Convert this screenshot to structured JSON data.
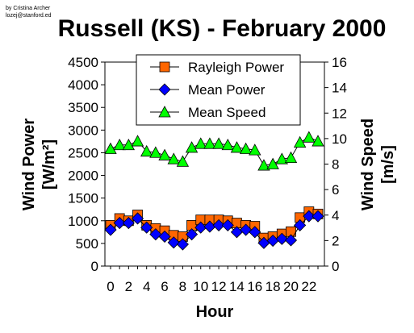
{
  "credit": [
    "by Cristina Archer",
    "lozej@stanford.ed"
  ],
  "chart_data": {
    "type": "line",
    "title": "Russell (KS) - February 2000",
    "xlabel": "Hour",
    "ylabel_left": "Wind Power [W/m²]",
    "ylabel_right": "Wind Speed [m/s]",
    "x": [
      0,
      1,
      2,
      3,
      4,
      5,
      6,
      7,
      8,
      9,
      10,
      11,
      12,
      13,
      14,
      15,
      16,
      17,
      18,
      19,
      20,
      21,
      22,
      23
    ],
    "x_ticks": [
      0,
      2,
      4,
      6,
      8,
      10,
      12,
      14,
      16,
      18,
      20,
      22
    ],
    "ylim_left": [
      0,
      4500
    ],
    "yticks_left": [
      0,
      500,
      1000,
      1500,
      2000,
      2500,
      3000,
      3500,
      4000,
      4500
    ],
    "ylim_right": [
      0,
      16
    ],
    "yticks_right": [
      0,
      2,
      4,
      6,
      8,
      10,
      12,
      14,
      16
    ],
    "grid": false,
    "legend_position": "top-center",
    "series": [
      {
        "name": "Rayleigh Power",
        "axis": "left",
        "marker": "square",
        "color": "#FF6600",
        "values": [
          900,
          1050,
          1000,
          1130,
          900,
          830,
          780,
          680,
          650,
          900,
          1020,
          1020,
          1020,
          1000,
          950,
          900,
          880,
          620,
          650,
          710,
          760,
          1070,
          1200,
          1150
        ]
      },
      {
        "name": "Mean Power",
        "axis": "left",
        "marker": "diamond",
        "color": "#0000FF",
        "values": [
          800,
          950,
          950,
          1050,
          850,
          700,
          650,
          520,
          480,
          700,
          850,
          870,
          900,
          900,
          750,
          800,
          750,
          510,
          560,
          600,
          570,
          900,
          1100,
          1100
        ]
      },
      {
        "name": "Mean Speed",
        "axis": "right",
        "marker": "triangle",
        "color": "#00FF00",
        "values": [
          9.2,
          9.5,
          9.5,
          9.8,
          9.0,
          8.9,
          8.7,
          8.4,
          8.2,
          9.3,
          9.6,
          9.6,
          9.6,
          9.5,
          9.3,
          9.2,
          9.1,
          7.9,
          8.0,
          8.4,
          8.5,
          9.7,
          10.1,
          9.8
        ]
      }
    ]
  }
}
